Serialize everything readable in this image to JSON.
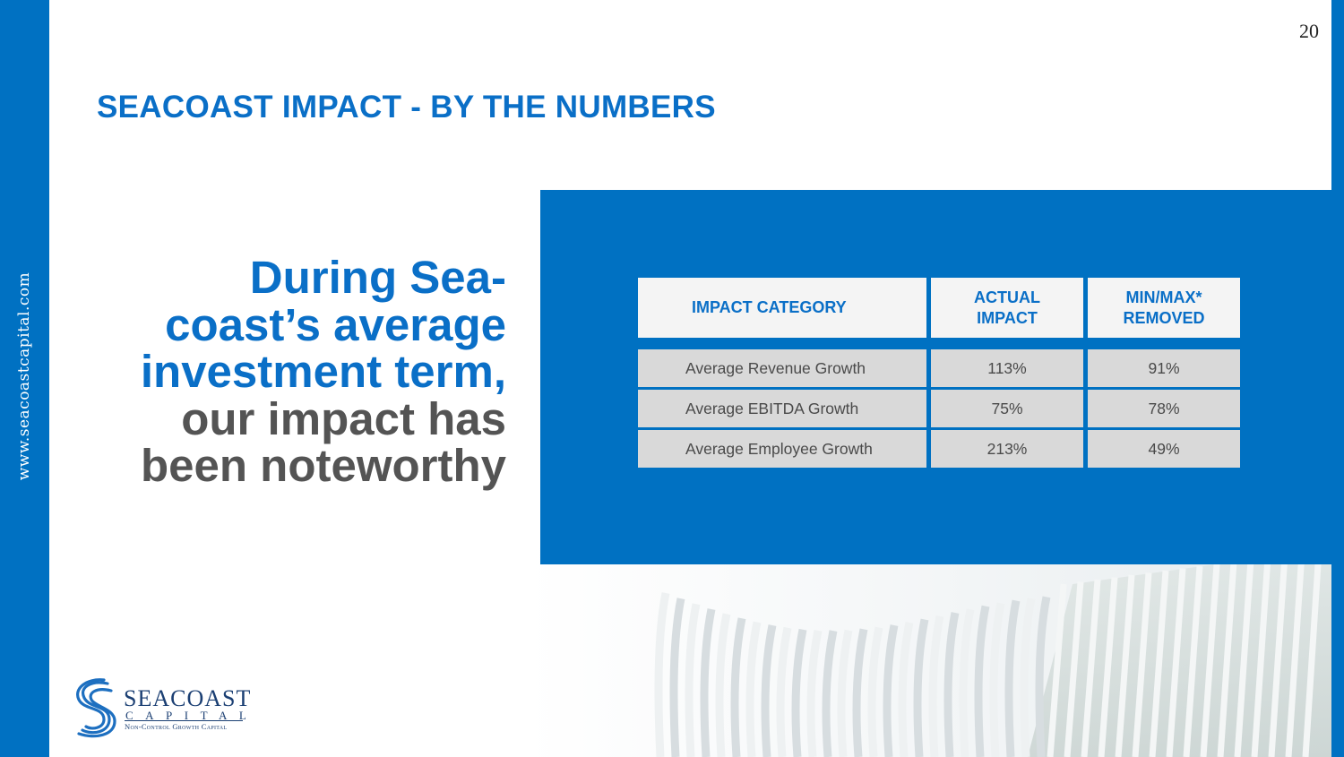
{
  "page": {
    "number": "20",
    "side_url": "www.seacoastcapital.com",
    "title": "SEACOAST IMPACT - BY THE NUMBERS"
  },
  "headline": {
    "blue_lines": [
      "During Sea-",
      "coast’s average",
      "investment term,"
    ],
    "gray_lines": [
      "our impact has",
      "been noteworthy"
    ]
  },
  "table": {
    "headers": {
      "category": "IMPACT CATEGORY",
      "actual_line1": "ACTUAL",
      "actual_line2": "IMPACT",
      "minmax_line1": "MIN/MAX*",
      "minmax_line2": "REMOVED"
    },
    "rows": [
      {
        "category": "Average Revenue Growth",
        "actual": "113%",
        "minmax": "91%"
      },
      {
        "category": "Average EBITDA Growth",
        "actual": "75%",
        "minmax": "78%"
      },
      {
        "category": "Average Employee Growth",
        "actual": "213%",
        "minmax": "49%"
      }
    ]
  },
  "logo": {
    "name": "SEACOAST",
    "sub": "CAPITAL",
    "tagline": "Non-Control Growth Capital"
  },
  "colors": {
    "brand_blue": "#0071c2",
    "title_blue": "#0a6fc7",
    "headline_gray": "#545454",
    "logo_navy": "#1b3f73"
  }
}
